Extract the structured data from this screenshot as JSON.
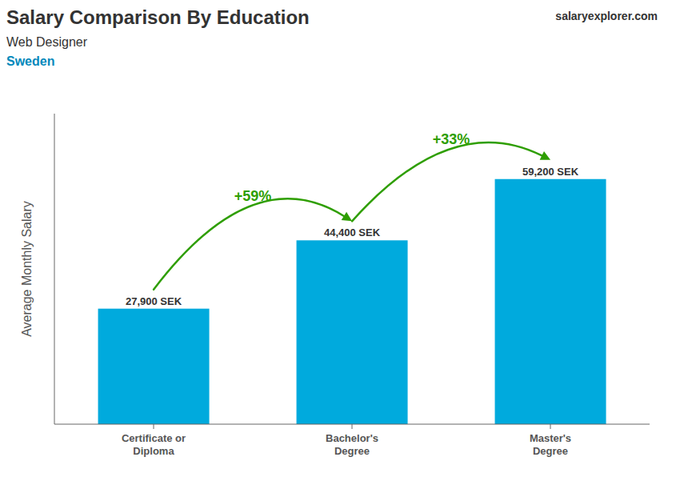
{
  "chart_data": {
    "type": "bar",
    "title": "Salary Comparison By Education",
    "subtitle": "Web Designer",
    "annotations": [
      "Sweden",
      "salaryexplorer.com",
      "+59%",
      "+33%"
    ],
    "y_label": "Average Monthly Salary",
    "categories": [
      "Certificate or\nDiploma",
      "Bachelor's\nDegree",
      "Master's\nDegree"
    ],
    "values": [
      27900,
      44400,
      59200
    ],
    "value_labels": [
      "27,900 SEK",
      "44,400 SEK",
      "59,200 SEK"
    ],
    "color": "#00aadd",
    "ylim": [
      0,
      75000
    ],
    "data_labels": true,
    "tick_labels": "x",
    "grid": false
  }
}
